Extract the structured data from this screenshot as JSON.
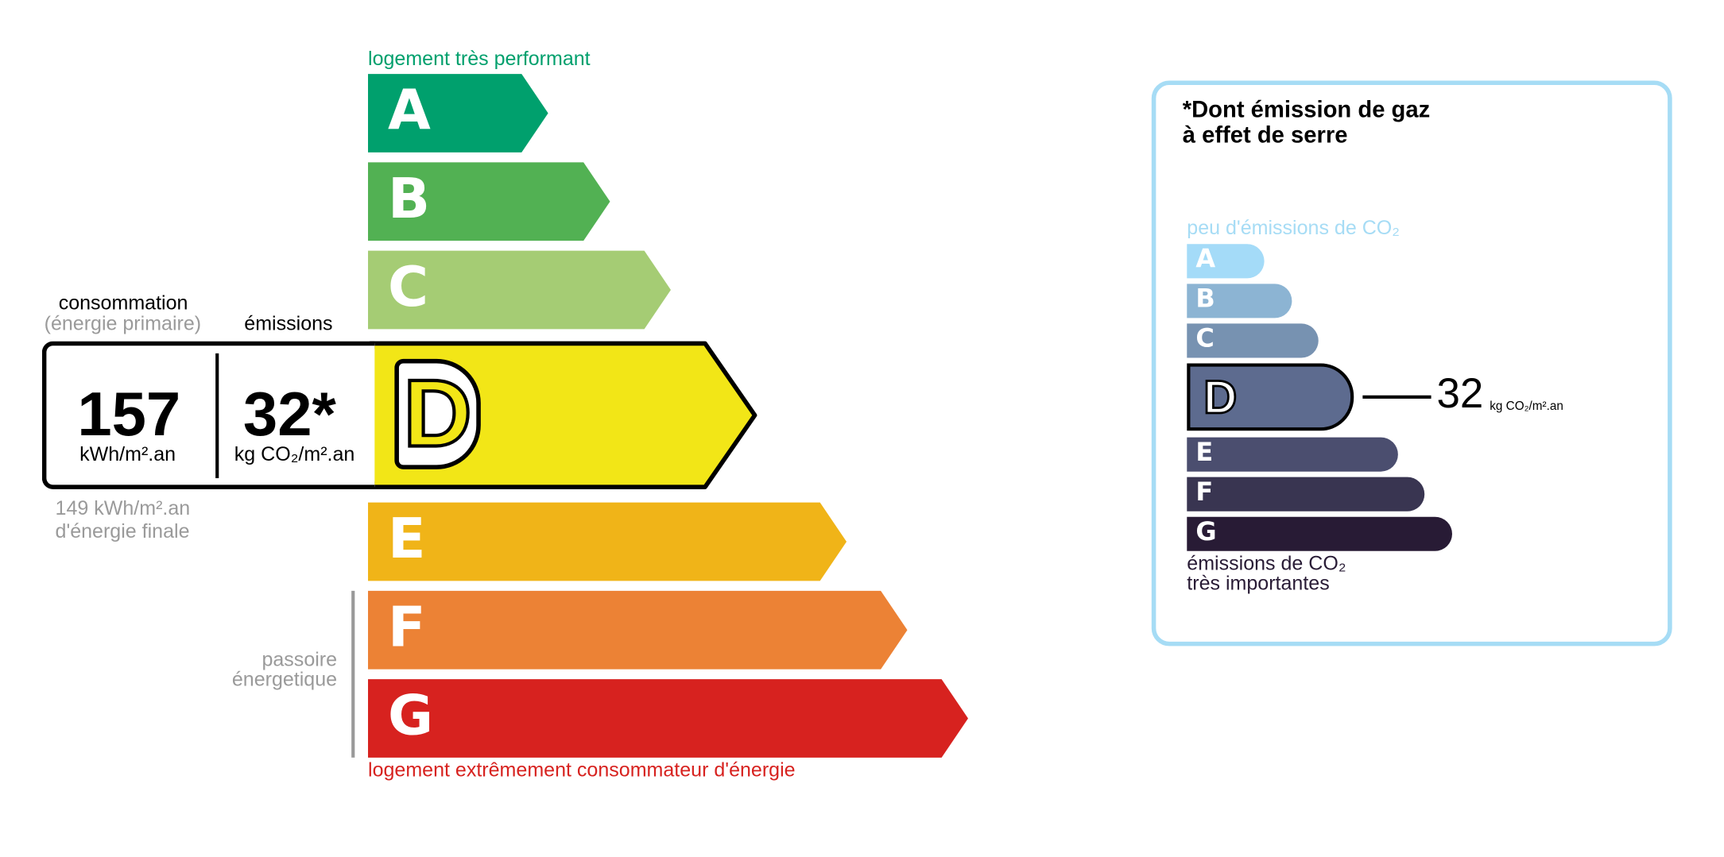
{
  "energy": {
    "top_label": "logement très performant",
    "bottom_label": "logement extrêmement consommateur d'énergie",
    "passoire_label": [
      "passoire",
      "énergetique"
    ],
    "classes": [
      {
        "letter": "A",
        "color": "#00a06d"
      },
      {
        "letter": "B",
        "color": "#52b153"
      },
      {
        "letter": "C",
        "color": "#a5cc74"
      },
      {
        "letter": "D",
        "color": "#f2e617"
      },
      {
        "letter": "E",
        "color": "#f0b418"
      },
      {
        "letter": "F",
        "color": "#ec8235"
      },
      {
        "letter": "G",
        "color": "#d7221f"
      }
    ],
    "current_class": "D",
    "consumption_label": "consommation",
    "consumption_sublabel": "(énergie primaire)",
    "emissions_label": "émissions",
    "consumption_value": "157",
    "consumption_unit": "kWh/m².an",
    "emissions_value": "32*",
    "emissions_unit": "kg CO₂/m².an",
    "final_energy_value": "149 kWh/m².an",
    "final_energy_label": "d'énergie finale",
    "top_color": "#00a06d",
    "bottom_color": "#d7221f"
  },
  "ges": {
    "title_line1": "*Dont émission de gaz",
    "title_line2": "à effet de serre",
    "top_label": "peu d'émissions de CO₂",
    "bottom_label_line1": "émissions de CO₂",
    "bottom_label_line2": "très importantes",
    "classes": [
      {
        "letter": "A",
        "color": "#a4dbf8"
      },
      {
        "letter": "B",
        "color": "#8cb4d3"
      },
      {
        "letter": "C",
        "color": "#7792b1"
      },
      {
        "letter": "D",
        "color": "#5d6b8f"
      },
      {
        "letter": "E",
        "color": "#4b4e6f"
      },
      {
        "letter": "F",
        "color": "#393551"
      },
      {
        "letter": "G",
        "color": "#281b35"
      }
    ],
    "current_class": "D",
    "value": "32",
    "unit": "kg CO₂/m².an",
    "border_color": "#a6dcf5"
  }
}
